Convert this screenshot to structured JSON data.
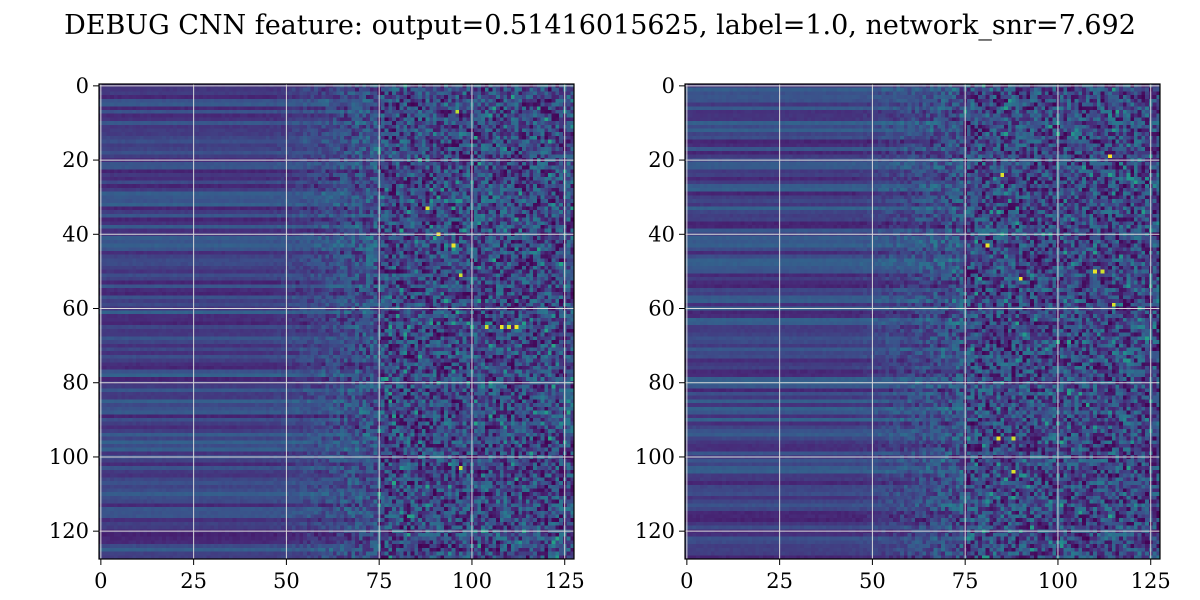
{
  "figure": {
    "title": "DEBUG CNN feature: output=0.51416015625, label=1.0, network_snr=7.692"
  },
  "chart_data": [
    {
      "type": "heatmap",
      "title": "",
      "xlabel": "",
      "ylabel": "",
      "shape": [
        128,
        128
      ],
      "xlim": [
        -0.5,
        127.5
      ],
      "ylim": [
        127.5,
        -0.5
      ],
      "xticks": [
        0,
        25,
        50,
        75,
        100,
        125
      ],
      "xtick_labels": [
        "0",
        "25",
        "50",
        "75",
        "100",
        "125"
      ],
      "yticks": [
        0,
        20,
        40,
        60,
        80,
        100,
        120
      ],
      "ytick_labels": [
        "0",
        "20",
        "40",
        "60",
        "80",
        "100",
        "120"
      ],
      "grid": true,
      "colormap": "viridis",
      "hotspots": [
        [
          7,
          96
        ],
        [
          43,
          95
        ],
        [
          51,
          97
        ],
        [
          65,
          104
        ],
        [
          65,
          108
        ],
        [
          65,
          110
        ],
        [
          65,
          112
        ],
        [
          103,
          97
        ],
        [
          33,
          88
        ],
        [
          40,
          91
        ]
      ]
    },
    {
      "type": "heatmap",
      "title": "",
      "xlabel": "",
      "ylabel": "",
      "shape": [
        128,
        128
      ],
      "xlim": [
        -0.5,
        127.5
      ],
      "ylim": [
        127.5,
        -0.5
      ],
      "xticks": [
        0,
        25,
        50,
        75,
        100,
        125
      ],
      "xtick_labels": [
        "0",
        "25",
        "50",
        "75",
        "100",
        "125"
      ],
      "yticks": [
        0,
        20,
        40,
        60,
        80,
        100,
        120
      ],
      "ytick_labels": [
        "0",
        "20",
        "40",
        "60",
        "80",
        "100",
        "120"
      ],
      "grid": true,
      "colormap": "viridis",
      "hotspots": [
        [
          50,
          110
        ],
        [
          50,
          112
        ],
        [
          59,
          115
        ],
        [
          95,
          84
        ],
        [
          95,
          88
        ],
        [
          52,
          90
        ],
        [
          19,
          114
        ],
        [
          24,
          85
        ],
        [
          43,
          81
        ],
        [
          104,
          88
        ]
      ]
    }
  ],
  "colors": {
    "grid": "#d9d9d9",
    "low": "#440154",
    "high": "#fde725"
  }
}
